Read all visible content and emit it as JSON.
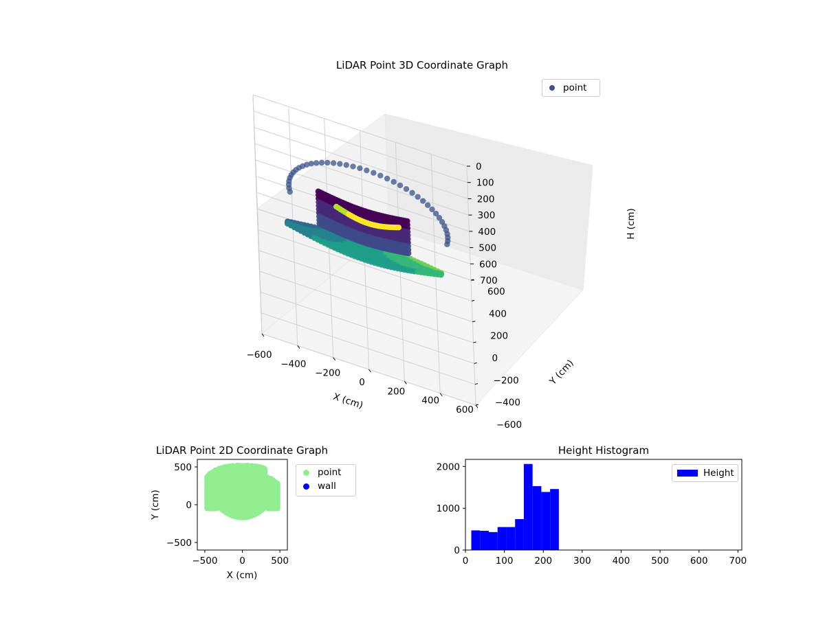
{
  "colors": {
    "scatter3d": "#3b528b",
    "point2d": "#90ee90",
    "wall2d": "#0000ff",
    "histogram": "#0000ff"
  },
  "chart_data": [
    {
      "type": "scatter",
      "projection": "3d",
      "title": "LiDAR Point 3D Coordinate Graph",
      "xlabel": "X (cm)",
      "ylabel": "Y (cm)",
      "zlabel": "H (cm)",
      "xlim": [
        -600,
        600
      ],
      "ylim": [
        -600,
        600
      ],
      "zlim": [
        0,
        700
      ],
      "z_inverted": true,
      "x_ticks": [
        "−600",
        "−400",
        "−200",
        "0",
        "200",
        "400",
        "600"
      ],
      "y_ticks": [
        "−600",
        "−400",
        "−200",
        "0",
        "200",
        "400",
        "600"
      ],
      "z_ticks": [
        "0",
        "100",
        "200",
        "300",
        "400",
        "500",
        "600",
        "700"
      ],
      "colormap": "viridis",
      "legend": {
        "entries": [
          "point"
        ],
        "placement": "upper-right"
      },
      "grid": true,
      "series": [
        {
          "name": "point"
        }
      ]
    },
    {
      "type": "scatter",
      "title": "LiDAR Point 2D Coordinate Graph",
      "xlabel": "X (cm)",
      "ylabel": "Y (cm)",
      "xlim": [
        -600,
        600
      ],
      "ylim": [
        -600,
        600
      ],
      "x_ticks": [
        "−500",
        "0",
        "500"
      ],
      "y_ticks": [
        "−500",
        "0",
        "500"
      ],
      "legend": {
        "entries": [
          "point",
          "wall"
        ],
        "placement": "outside-right"
      },
      "grid": false,
      "series": [
        {
          "name": "point"
        },
        {
          "name": "wall"
        }
      ]
    },
    {
      "type": "bar",
      "title": "Height Histogram",
      "xlabel": "",
      "ylabel": "",
      "xlim": [
        0,
        710
      ],
      "ylim": [
        0,
        2170
      ],
      "x_ticks": [
        "0",
        "100",
        "200",
        "300",
        "400",
        "500",
        "600",
        "700"
      ],
      "y_ticks": [
        "0",
        "1000",
        "2000"
      ],
      "bin_edges": [
        15,
        37.5,
        60,
        82.5,
        105,
        127.5,
        150,
        172.5,
        195,
        217.5,
        240
      ],
      "values": [
        470,
        460,
        430,
        550,
        550,
        740,
        2060,
        1530,
        1390,
        1460
      ],
      "legend": {
        "entries": [
          "Height"
        ],
        "placement": "upper-right"
      },
      "grid": false,
      "series": [
        {
          "name": "Height"
        }
      ]
    }
  ]
}
